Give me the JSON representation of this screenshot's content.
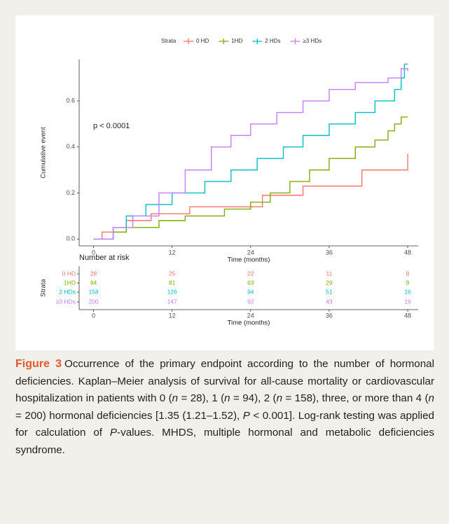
{
  "chart_data": {
    "type": "step",
    "ylabel": "Cumulative event",
    "xlabel": "Time (months)",
    "legend_title": "Strata",
    "annotation": "p < 0.0001",
    "xlim": [
      -2.2,
      49.6
    ],
    "ylim": [
      -0.03,
      0.78
    ],
    "xticks": [
      0,
      12,
      24,
      36,
      48
    ],
    "yticks": [
      {
        "value": 0,
        "label": "0.0"
      },
      0.2,
      0.4,
      0.6
    ],
    "series": [
      {
        "name": "0 HD",
        "color": "#f8766d",
        "x": [
          0,
          1.3,
          5,
          8.8,
          14.7,
          25.8,
          32,
          41,
          48
        ],
        "values": [
          0,
          0.03,
          0.08,
          0.11,
          0.14,
          0.19,
          0.23,
          0.3,
          0.37
        ]
      },
      {
        "name": "1HD",
        "color": "#7cae00",
        "x": [
          0,
          3,
          5,
          10,
          14,
          20,
          24,
          27,
          30,
          33,
          36,
          40,
          43,
          45,
          46,
          47,
          48
        ],
        "values": [
          0,
          0.03,
          0.05,
          0.08,
          0.1,
          0.13,
          0.16,
          0.2,
          0.25,
          0.3,
          0.35,
          0.4,
          0.43,
          0.47,
          0.5,
          0.53,
          0.53
        ]
      },
      {
        "name": "2 HDs",
        "color": "#00bfc4",
        "x": [
          0,
          3,
          5,
          8,
          12,
          17,
          21,
          25,
          29,
          32,
          36,
          40,
          43,
          46,
          47,
          47.5,
          48
        ],
        "values": [
          0,
          0.05,
          0.1,
          0.15,
          0.2,
          0.25,
          0.3,
          0.35,
          0.4,
          0.45,
          0.5,
          0.55,
          0.6,
          0.65,
          0.7,
          0.76,
          0.76
        ]
      },
      {
        "name": "≥3 HDs",
        "color": "#c77cff",
        "x": [
          0,
          3,
          6,
          10,
          14,
          18,
          21,
          24,
          28,
          32,
          36,
          40,
          45,
          47,
          48
        ],
        "values": [
          0,
          0.05,
          0.1,
          0.2,
          0.3,
          0.4,
          0.45,
          0.5,
          0.55,
          0.6,
          0.65,
          0.68,
          0.7,
          0.74,
          0.73
        ]
      }
    ],
    "risk_table": {
      "title": "Number at risk",
      "ylabel": "Strata",
      "xlabel": "Time (months)",
      "rows": [
        {
          "name": "0 HD",
          "color": "#f8766d",
          "values": [
            28,
            25,
            22,
            11,
            8
          ]
        },
        {
          "name": "1HD",
          "color": "#7cae00",
          "values": [
            94,
            81,
            63,
            29,
            9
          ]
        },
        {
          "name": "2 HDs",
          "color": "#00bfc4",
          "values": [
            158,
            126,
            94,
            51,
            16
          ]
        },
        {
          "name": "≥3 HDs",
          "color": "#c77cff",
          "values": [
            200,
            147,
            92,
            43,
            19
          ]
        }
      ]
    }
  },
  "caption": {
    "label": "Figure 3",
    "segments": [
      {
        "text": "Occurrence of the primary endpoint according to the number of hormonal deficiencies. Kaplan–Meier analysis of survival for all-cause mortality or cardiovascular hospitalization in patients with 0 ("
      },
      {
        "text": "n",
        "italic": true
      },
      {
        "text": " = 28), 1 ("
      },
      {
        "text": "n",
        "italic": true
      },
      {
        "text": " = 94), 2 ("
      },
      {
        "text": "n",
        "italic": true
      },
      {
        "text": " = 158), three, or more than 4 ("
      },
      {
        "text": "n",
        "italic": true
      },
      {
        "text": " = 200) hormonal deficiencies [1.35 (1.21–1.52), "
      },
      {
        "text": "P",
        "italic": true
      },
      {
        "text": " < 0.001]. Log-rank testing was applied for calculation of "
      },
      {
        "text": "P",
        "italic": true
      },
      {
        "text": "-values. MHDS, multiple hormonal and metabolic deficiencies syndrome."
      }
    ]
  }
}
